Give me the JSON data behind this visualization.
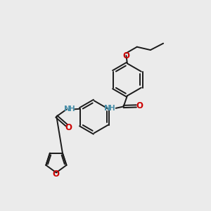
{
  "bg_color": "#ebebeb",
  "bond_color": "#1a1a1a",
  "O_color": "#cc0000",
  "N_color": "#4a8fa8",
  "line_width": 1.4,
  "font_size": 7.5,
  "fig_size": [
    3.0,
    3.0
  ],
  "dpi": 100,
  "xlim": [
    0,
    10
  ],
  "ylim": [
    0,
    10
  ]
}
